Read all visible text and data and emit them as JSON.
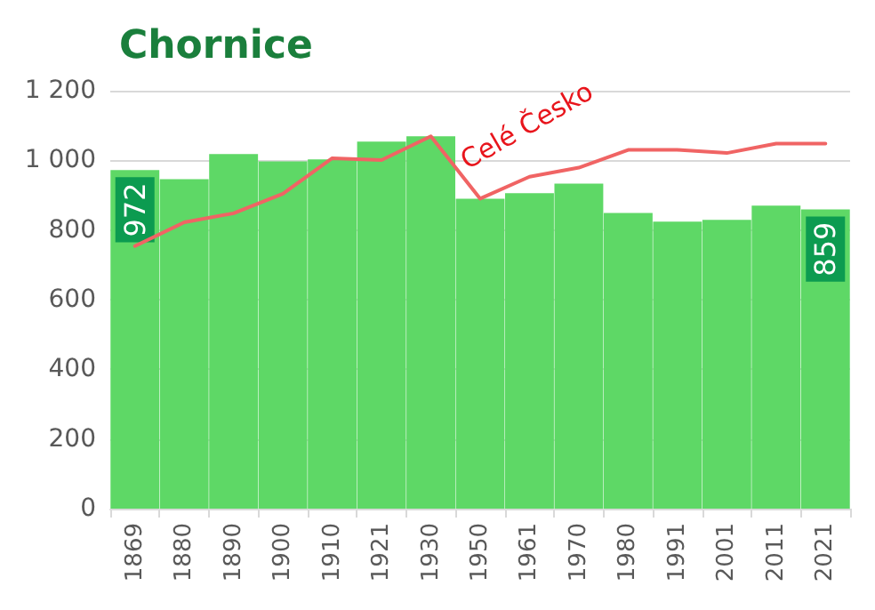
{
  "chart_data": {
    "type": "bar",
    "title": "Chornice",
    "categories": [
      "1869",
      "1880",
      "1890",
      "1900",
      "1910",
      "1921",
      "1930",
      "1950",
      "1961",
      "1970",
      "1980",
      "1991",
      "2001",
      "2011",
      "2021"
    ],
    "series": [
      {
        "color": "#5ed866",
        "values": [
          972,
          946,
          1018,
          997,
          1003,
          1054,
          1069,
          890,
          906,
          933,
          849,
          824,
          829,
          870,
          859
        ],
        "value_labels": [
          "972",
          null,
          null,
          null,
          null,
          null,
          null,
          null,
          null,
          null,
          null,
          null,
          null,
          null,
          "859"
        ]
      },
      {
        "type": "line",
        "name": "Celé Česko",
        "color": "#f06464",
        "values": [
          754,
          822,
          848,
          904,
          1006,
          1001,
          1069,
          890,
          953,
          979,
          1030,
          1030,
          1021,
          1048,
          1048
        ]
      }
    ],
    "ylim": [
      0,
      1200
    ],
    "yticks": [
      0,
      200,
      400,
      600,
      800,
      {
        "value": 1000,
        "label": "1 000"
      },
      {
        "value": 1200,
        "label": "1 200"
      }
    ],
    "grid": "y",
    "legend": false,
    "marker": "none",
    "line_style": "solid"
  }
}
